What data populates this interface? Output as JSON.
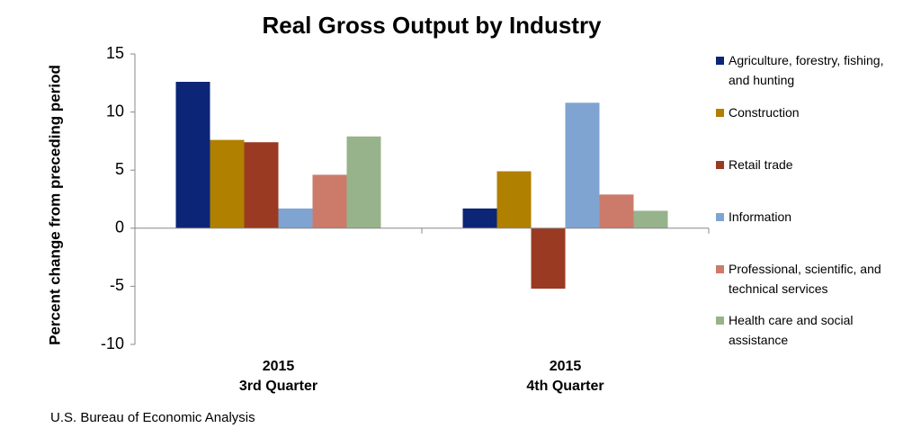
{
  "chart_data": {
    "type": "bar",
    "title": "Real Gross Output by Industry",
    "y_label": "Percent change from preceding period",
    "categories": [
      "2015\n3rd Quarter",
      "2015\n4th Quarter"
    ],
    "series": [
      {
        "name": "Agriculture, forestry, fishing, and hunting",
        "color": "#0c2577",
        "values": [
          12.6,
          1.7
        ]
      },
      {
        "name": "Construction",
        "color": "#b08000",
        "values": [
          7.6,
          4.9
        ]
      },
      {
        "name": "Retail trade",
        "color": "#9a3a22",
        "values": [
          7.4,
          -5.2
        ]
      },
      {
        "name": "Information",
        "color": "#7fa4d2",
        "values": [
          1.7,
          10.8
        ]
      },
      {
        "name": "Professional, scientific, and technical services",
        "color": "#cc7b6a",
        "values": [
          4.6,
          2.9
        ]
      },
      {
        "name": "Health care and social assistance",
        "color": "#97b38b",
        "values": [
          7.9,
          1.5
        ]
      }
    ],
    "ylim": [
      -10,
      15
    ],
    "yticks": [
      -10,
      -5,
      0,
      5,
      10,
      15
    ],
    "grid": false,
    "legend": "right",
    "source": "U.S. Bureau of Economic Analysis"
  }
}
